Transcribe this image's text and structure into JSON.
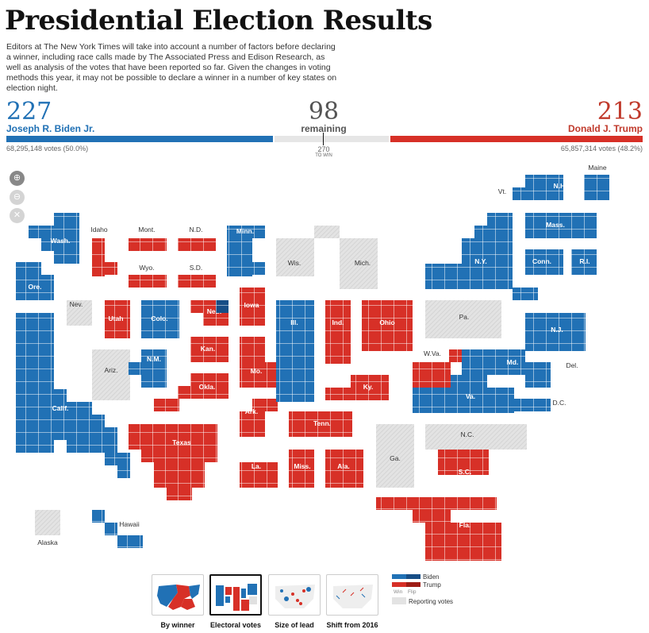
{
  "header": {
    "title": "Presidential Election Results",
    "intro": "Editors at The New York Times will take into account a number of factors before declaring a winner, including race calls made by The Associated Press and Edison Research, as well as analysis of the votes that have been reported so far. Given the changes in voting methods this year, it may not be possible to declare a winner in a number of key states on election night."
  },
  "tally": {
    "biden": {
      "ev": "227",
      "name": "Joseph R. Biden Jr.",
      "votes": "68,295,148 votes (50.0%)",
      "ev_value": 227
    },
    "remaining": {
      "ev": "98",
      "label": "remaining",
      "ev_value": 98
    },
    "trump": {
      "ev": "213",
      "name": "Donald J. Trump",
      "votes": "65,857,314 votes (48.2%)",
      "ev_value": 213
    },
    "to_win": {
      "number": "270",
      "label": "TO WIN",
      "value": 270
    }
  },
  "colors": {
    "biden": "#2171b5",
    "trump": "#d73027",
    "pending": "#e0e0e0",
    "text_biden": "#2171b5",
    "text_trump": "#c0392b"
  },
  "zoom_controls": [
    {
      "icon": "zoom-in-icon",
      "glyph": "+"
    },
    {
      "icon": "zoom-out-icon",
      "glyph": "−"
    },
    {
      "icon": "reset-icon",
      "glyph": "✕"
    }
  ],
  "states": [
    {
      "key": "wa",
      "label": "Wash.",
      "status": "biden"
    },
    {
      "key": "or",
      "label": "Ore.",
      "status": "biden"
    },
    {
      "key": "ca",
      "label": "Calif.",
      "status": "biden"
    },
    {
      "key": "nv",
      "label": "Nev.",
      "status": "pending"
    },
    {
      "key": "id",
      "label": "Idaho",
      "status": "trump"
    },
    {
      "key": "ut",
      "label": "Utah",
      "status": "trump"
    },
    {
      "key": "az",
      "label": "Ariz.",
      "status": "pending"
    },
    {
      "key": "mt",
      "label": "Mont.",
      "status": "trump"
    },
    {
      "key": "wy",
      "label": "Wyo.",
      "status": "trump"
    },
    {
      "key": "co",
      "label": "Colo.",
      "status": "biden"
    },
    {
      "key": "nm",
      "label": "N.M.",
      "status": "biden"
    },
    {
      "key": "nd",
      "label": "N.D.",
      "status": "trump"
    },
    {
      "key": "sd",
      "label": "S.D.",
      "status": "trump"
    },
    {
      "key": "ne",
      "label": "Neb.",
      "status": "trump"
    },
    {
      "key": "ks",
      "label": "Kan.",
      "status": "trump"
    },
    {
      "key": "ok",
      "label": "Okla.",
      "status": "trump"
    },
    {
      "key": "tx",
      "label": "Texas",
      "status": "trump"
    },
    {
      "key": "mn",
      "label": "Minn.",
      "status": "biden"
    },
    {
      "key": "ia",
      "label": "Iowa",
      "status": "trump"
    },
    {
      "key": "mo",
      "label": "Mo.",
      "status": "trump"
    },
    {
      "key": "ar",
      "label": "Ark.",
      "status": "trump"
    },
    {
      "key": "la",
      "label": "La.",
      "status": "trump"
    },
    {
      "key": "wi",
      "label": "Wis.",
      "status": "pending"
    },
    {
      "key": "il",
      "label": "Ill.",
      "status": "biden"
    },
    {
      "key": "mi",
      "label": "Mich.",
      "status": "pending"
    },
    {
      "key": "in",
      "label": "Ind.",
      "status": "trump"
    },
    {
      "key": "oh",
      "label": "Ohio",
      "status": "trump"
    },
    {
      "key": "ky",
      "label": "Ky.",
      "status": "trump"
    },
    {
      "key": "tn",
      "label": "Tenn.",
      "status": "trump"
    },
    {
      "key": "ms",
      "label": "Miss.",
      "status": "trump"
    },
    {
      "key": "al",
      "label": "Ala.",
      "status": "trump"
    },
    {
      "key": "ga",
      "label": "Ga.",
      "status": "pending"
    },
    {
      "key": "fl",
      "label": "Fla.",
      "status": "trump"
    },
    {
      "key": "sc",
      "label": "S.C.",
      "status": "trump"
    },
    {
      "key": "nc",
      "label": "N.C.",
      "status": "pending"
    },
    {
      "key": "va",
      "label": "Va.",
      "status": "biden"
    },
    {
      "key": "wv",
      "label": "W.Va.",
      "status": "trump"
    },
    {
      "key": "pa",
      "label": "Pa.",
      "status": "pending"
    },
    {
      "key": "ny",
      "label": "N.Y.",
      "status": "biden"
    },
    {
      "key": "vt",
      "label": "Vt.",
      "status": "biden"
    },
    {
      "key": "nh",
      "label": "N.H.",
      "status": "biden"
    },
    {
      "key": "me",
      "label": "Maine",
      "status": "biden"
    },
    {
      "key": "ma",
      "label": "Mass.",
      "status": "biden"
    },
    {
      "key": "ct",
      "label": "Conn.",
      "status": "biden"
    },
    {
      "key": "ri",
      "label": "R.I.",
      "status": "biden"
    },
    {
      "key": "nj",
      "label": "N.J.",
      "status": "biden"
    },
    {
      "key": "de",
      "label": "Del.",
      "status": "biden"
    },
    {
      "key": "md",
      "label": "Md.",
      "status": "biden"
    },
    {
      "key": "dc",
      "label": "D.C.",
      "status": "biden"
    },
    {
      "key": "ak",
      "label": "Alaska",
      "status": "pending"
    },
    {
      "key": "hi",
      "label": "Hawaii",
      "status": "biden"
    }
  ],
  "views": [
    {
      "label": "By winner",
      "active": false
    },
    {
      "label": "Electoral votes",
      "active": true
    },
    {
      "label": "Size of lead",
      "active": false
    },
    {
      "label": "Shift from 2016",
      "active": false
    }
  ],
  "legend": {
    "biden": "Biden",
    "trump": "Trump",
    "win": "Win",
    "flip": "Flip",
    "reporting": "Reporting votes"
  }
}
